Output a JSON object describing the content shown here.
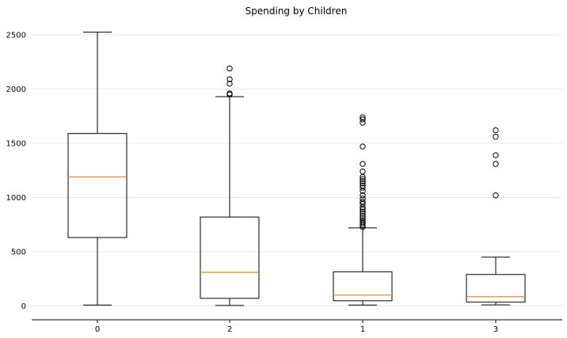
{
  "chart_data": {
    "type": "box",
    "title": "Spending by Children",
    "xlabel": "",
    "ylabel": "",
    "categories": [
      "0",
      "2",
      "1",
      "3"
    ],
    "ylim": [
      -130,
      2620
    ],
    "yticks": [
      0,
      500,
      1000,
      1500,
      2000,
      2500
    ],
    "grid": "y",
    "boxes": [
      {
        "category": "0",
        "whisker_low": 8,
        "q1": 631,
        "median": 1190,
        "q3": 1590,
        "whisker_high": 2525,
        "fliers": []
      },
      {
        "category": "2",
        "whisker_low": 5,
        "q1": 70,
        "median": 310,
        "q3": 820,
        "whisker_high": 1930,
        "fliers": [
          1950,
          1960,
          2050,
          2090,
          2190
        ]
      },
      {
        "category": "1",
        "whisker_low": 8,
        "q1": 48,
        "median": 100,
        "q3": 315,
        "whisker_high": 720,
        "fliers": [
          730,
          745,
          760,
          775,
          790,
          810,
          830,
          850,
          870,
          890,
          910,
          940,
          960,
          990,
          1020,
          1060,
          1090,
          1110,
          1130,
          1150,
          1170,
          1190,
          1240,
          1310,
          1470,
          1690,
          1720,
          1740
        ]
      },
      {
        "category": "3",
        "whisker_low": 10,
        "q1": 35,
        "median": 85,
        "q3": 290,
        "whisker_high": 450,
        "fliers": [
          1020,
          1310,
          1390,
          1560,
          1620
        ]
      }
    ]
  }
}
